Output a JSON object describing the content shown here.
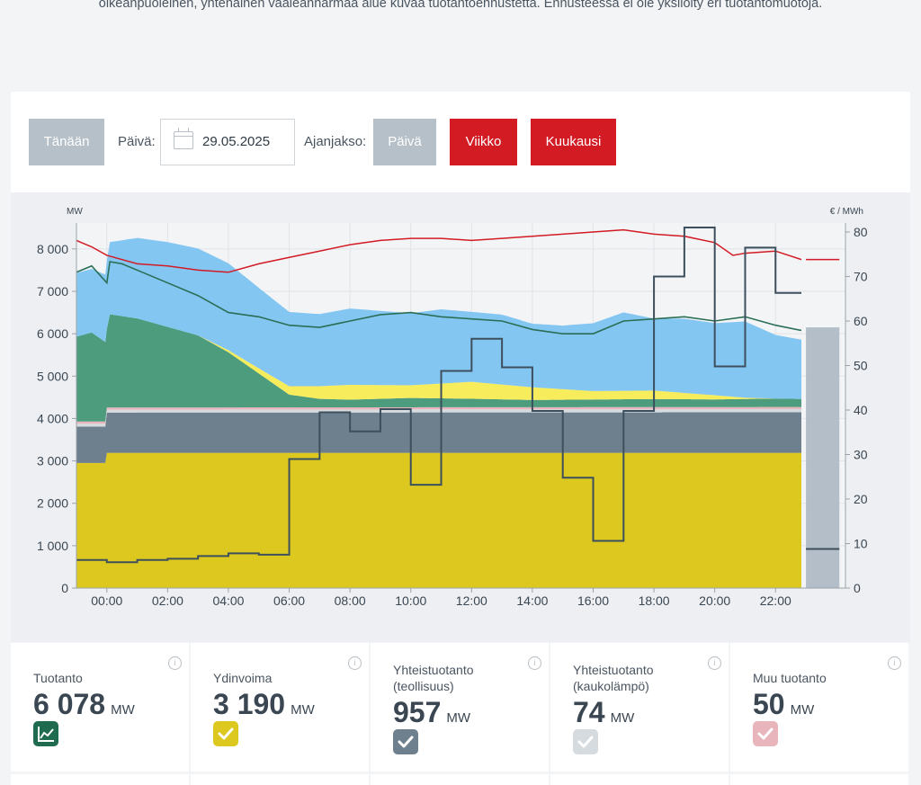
{
  "intro_text": "oikeanpuoleinen, yhtenäinen vaaleanharmaa alue kuvaa tuotantoennustetta. Ennusteessa ei ole yksilöity eri tuotantomuotoja.",
  "controls": {
    "today_label": "Tänään",
    "date_label": "Päivä:",
    "date_value": "29.05.2025",
    "period_label": "Ajanjakso:",
    "day_label": "Päivä",
    "week_label": "Viikko",
    "month_label": "Kuukausi"
  },
  "colors": {
    "nuclear": "#dcc81e",
    "chp_industry": "#6e808e",
    "chp_district": "#d6dbe0",
    "other": "#e8b5bd",
    "hydro": "#4e9c7e",
    "solar": "#f7ec5c",
    "wind": "#84c6f2",
    "forecast": "#b3bec8",
    "consumption": "#d31b24",
    "price": "#3d4f5d",
    "production_outline": "#2a6e55",
    "accent": "#d31b24"
  },
  "chart_data": {
    "type": "area",
    "left_axis_unit": "MW",
    "right_axis_unit": "€ / MWh",
    "x_tick_labels": [
      "00:00",
      "02:00",
      "04:00",
      "06:00",
      "08:00",
      "10:00",
      "12:00",
      "14:00",
      "16:00",
      "18:00",
      "20:00",
      "22:00"
    ],
    "y_left_ticks": [
      "0",
      "1 000",
      "2 000",
      "3 000",
      "4 000",
      "5 000",
      "6 000",
      "7 000",
      "8 000"
    ],
    "y_right_ticks": [
      "0",
      "10",
      "20",
      "30",
      "40",
      "50",
      "60",
      "70",
      "80"
    ],
    "ylim_left": [
      0,
      8400
    ],
    "ylim_right": [
      0,
      80
    ],
    "x_range_hours": [
      -1,
      24.3
    ],
    "stack_series": [
      {
        "key": "nuclear",
        "x": [
          -1,
          -0.05,
          0,
          22.85
        ],
        "values": [
          2950,
          2950,
          3190,
          3190
        ]
      },
      {
        "key": "chp_industry",
        "x": [
          -1,
          -0.05,
          0,
          22.85
        ],
        "values": [
          860,
          860,
          950,
          957
        ]
      },
      {
        "key": "chp_district",
        "x": [
          -1,
          22.85
        ],
        "values": [
          70,
          74
        ]
      },
      {
        "key": "other",
        "x": [
          -1,
          22.85
        ],
        "values": [
          50,
          50
        ]
      },
      {
        "key": "hydro",
        "x": [
          -1,
          -0.5,
          0,
          0.1,
          1,
          2,
          3,
          4,
          5,
          6,
          7,
          8,
          10,
          12,
          14,
          16,
          18,
          20,
          22,
          22.85
        ],
        "values": [
          2000,
          2100,
          1850,
          2200,
          2100,
          1900,
          1700,
          1300,
          800,
          300,
          200,
          180,
          220,
          200,
          170,
          180,
          190,
          180,
          200,
          190
        ]
      },
      {
        "key": "solar",
        "x": [
          -1,
          3,
          4,
          5,
          6,
          7,
          8,
          10,
          12,
          14,
          16,
          18,
          20,
          21,
          22,
          22.85
        ],
        "values": [
          0,
          0,
          50,
          120,
          200,
          300,
          350,
          300,
          400,
          300,
          200,
          200,
          100,
          30,
          0,
          0
        ]
      },
      {
        "key": "wind",
        "x": [
          -1,
          -0.5,
          0,
          0.1,
          1,
          2,
          3,
          4,
          5,
          6,
          7,
          8,
          9,
          10,
          11,
          12,
          13,
          14,
          15,
          16,
          17,
          18,
          19,
          20,
          21,
          22,
          22.85
        ],
        "values": [
          1500,
          1500,
          1600,
          1700,
          1900,
          2000,
          2050,
          2050,
          1900,
          1750,
          1700,
          1800,
          1750,
          1700,
          1750,
          1650,
          1650,
          1500,
          1500,
          1600,
          1850,
          1700,
          1750,
          1700,
          1800,
          1500,
          1400
        ]
      }
    ],
    "production_total": {
      "x": [
        -1,
        -0.5,
        0,
        0.1,
        0.5,
        1,
        2,
        3,
        4,
        5,
        6,
        7,
        8,
        9,
        10,
        11,
        12,
        13,
        14,
        15,
        16,
        17,
        18,
        19,
        20,
        21,
        22,
        22.85
      ],
      "values": [
        7450,
        7600,
        7200,
        7700,
        7650,
        7500,
        7200,
        6900,
        6500,
        6400,
        6200,
        6150,
        6300,
        6450,
        6500,
        6400,
        6350,
        6300,
        6100,
        6000,
        6000,
        6300,
        6350,
        6400,
        6300,
        6400,
        6200,
        6078
      ]
    },
    "consumption": {
      "x": [
        -1,
        -0.5,
        0,
        1,
        2,
        3,
        4,
        5,
        6,
        7,
        8,
        9,
        10,
        11,
        12,
        13,
        14,
        15,
        16,
        17,
        18,
        19,
        20,
        20.6,
        21,
        22,
        22.85
      ],
      "values": [
        8200,
        8050,
        7850,
        7650,
        7600,
        7500,
        7450,
        7650,
        7800,
        7950,
        8100,
        8200,
        8250,
        8250,
        8200,
        8250,
        8300,
        8350,
        8400,
        8450,
        8350,
        8300,
        8150,
        7850,
        7900,
        7950,
        7750
      ]
    },
    "consumption_forecast": {
      "x": [
        23,
        24.1
      ],
      "values": [
        7750,
        7750
      ]
    },
    "forecast_area": {
      "x": [
        23,
        24.1
      ],
      "values": [
        6150,
        6150
      ]
    },
    "price_steps": [
      {
        "from": -1,
        "to": 0,
        "value": 6.3
      },
      {
        "from": 0,
        "to": 1,
        "value": 5.8
      },
      {
        "from": 1,
        "to": 2,
        "value": 6.3
      },
      {
        "from": 2,
        "to": 3,
        "value": 6.6
      },
      {
        "from": 3,
        "to": 4,
        "value": 7.2
      },
      {
        "from": 4,
        "to": 5,
        "value": 7.8
      },
      {
        "from": 5,
        "to": 6,
        "value": 7.5
      },
      {
        "from": 6,
        "to": 7,
        "value": 29.0
      },
      {
        "from": 7,
        "to": 8,
        "value": 39.5
      },
      {
        "from": 8,
        "to": 9,
        "value": 35.2
      },
      {
        "from": 9,
        "to": 10,
        "value": 40.2
      },
      {
        "from": 10,
        "to": 11,
        "value": 23.2
      },
      {
        "from": 11,
        "to": 12,
        "value": 48.8
      },
      {
        "from": 12,
        "to": 13,
        "value": 56.0
      },
      {
        "from": 13,
        "to": 14,
        "value": 49.6
      },
      {
        "from": 14,
        "to": 15,
        "value": 39.8
      },
      {
        "from": 15,
        "to": 16,
        "value": 24.8
      },
      {
        "from": 16,
        "to": 17,
        "value": 10.6
      },
      {
        "from": 17,
        "to": 18,
        "value": 39.8
      },
      {
        "from": 18,
        "to": 19,
        "value": 70.0
      },
      {
        "from": 19,
        "to": 20,
        "value": 81.0
      },
      {
        "from": 20,
        "to": 21,
        "value": 49.8
      },
      {
        "from": 21,
        "to": 22,
        "value": 76.5
      },
      {
        "from": 22,
        "to": 22.85,
        "value": 66.3
      }
    ],
    "price_forecast": {
      "x": [
        23,
        24.1
      ],
      "values": [
        8.8,
        8.8
      ]
    }
  },
  "cards": [
    {
      "title": "Tuotanto",
      "value": "6 078",
      "unit": "MW",
      "icon": "chart-line-icon",
      "color": "#1f6b4f"
    },
    {
      "title": "Ydinvoima",
      "value": "3 190",
      "unit": "MW",
      "icon": "check-icon",
      "color": "#dcc81e"
    },
    {
      "title": "Yhteistuotanto (teollisuus)",
      "value": "957",
      "unit": "MW",
      "icon": "check-icon",
      "color": "#6e808e"
    },
    {
      "title": "Yhteistuotanto (kaukolämpö)",
      "value": "74",
      "unit": "MW",
      "icon": "check-icon",
      "color": "#d6dbe0"
    },
    {
      "title": "Muu tuotanto",
      "value": "50",
      "unit": "MW",
      "icon": "check-icon",
      "color": "#e8b5bd"
    }
  ]
}
